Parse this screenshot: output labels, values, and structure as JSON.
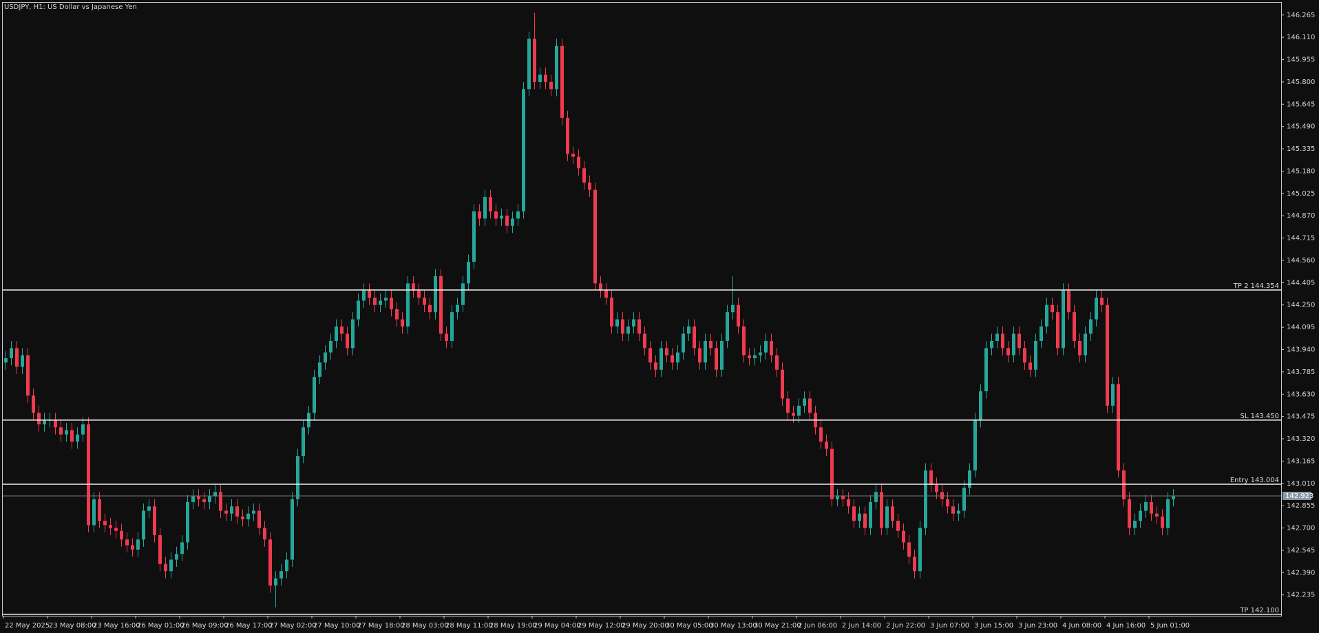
{
  "chart_data": {
    "type": "candlestick",
    "title": "USDJPY, H1:  US Dollar vs Japanese Yen",
    "bull_color": "#26a69a",
    "bear_color": "#ef3b4e",
    "categories": [
      "22 May 2025",
      null,
      null,
      null,
      null,
      null,
      null,
      null,
      "23 May 08:00",
      null,
      null,
      null,
      null,
      null,
      null,
      null,
      "23 May 16:00",
      null,
      null,
      null,
      null,
      null,
      null,
      null,
      "26 May 01:00",
      null,
      null,
      null,
      null,
      null,
      null,
      null,
      "26 May 09:00",
      null,
      null,
      null,
      null,
      null,
      null,
      null,
      "26 May 17:00",
      null,
      null,
      null,
      null,
      null,
      null,
      null,
      "27 May 02:00",
      null,
      null,
      null,
      null,
      null,
      null,
      null,
      "27 May 10:00",
      null,
      null,
      null,
      null,
      null,
      null,
      null,
      "27 May 18:00",
      null,
      null,
      null,
      null,
      null,
      null,
      null,
      "28 May 03:00",
      null,
      null,
      null,
      null,
      null,
      null,
      null,
      "28 May 11:00",
      null,
      null,
      null,
      null,
      null,
      null,
      null,
      "28 May 19:00",
      null,
      null,
      null,
      null,
      null,
      null,
      null,
      "29 May 04:00",
      null,
      null,
      null,
      null,
      null,
      null,
      null,
      "29 May 12:00",
      null,
      null,
      null,
      null,
      null,
      null,
      null,
      "29 May 20:00",
      null,
      null,
      null,
      null,
      null,
      null,
      null,
      "30 May 05:00",
      null,
      null,
      null,
      null,
      null,
      null,
      null,
      "30 May 13:00",
      null,
      null,
      null,
      null,
      null,
      null,
      null,
      "30 May 21:00",
      null,
      null,
      null,
      null,
      null,
      null,
      null,
      "2 Jun 06:00",
      null,
      null,
      null,
      null,
      null,
      null,
      null,
      "2 Jun 14:00",
      null,
      null,
      null,
      null,
      null,
      null,
      null,
      "2 Jun 22:00",
      null,
      null,
      null,
      null,
      null,
      null,
      null,
      "3 Jun 07:00",
      null,
      null,
      null,
      null,
      null,
      null,
      null,
      "3 Jun 15:00",
      null,
      null,
      null,
      null,
      null,
      null,
      null,
      "3 Jun 23:00",
      null,
      null,
      null,
      null,
      null,
      null,
      null,
      "4 Jun 08:00",
      null,
      null,
      null,
      null,
      null,
      null,
      null,
      "4 Jun 16:00",
      null,
      null,
      null,
      null,
      null,
      null,
      null,
      "5 Jun 01:00",
      null,
      null,
      null,
      null
    ],
    "open": [
      143.85,
      143.88,
      143.95,
      143.82,
      143.9,
      143.62,
      143.5,
      143.42,
      143.45,
      143.45,
      143.4,
      143.35,
      143.38,
      143.3,
      143.35,
      143.42,
      142.72,
      142.9,
      142.75,
      142.72,
      142.7,
      142.68,
      142.62,
      142.58,
      142.55,
      142.62,
      142.82,
      142.85,
      142.65,
      142.45,
      142.4,
      142.48,
      142.52,
      142.6,
      142.88,
      142.92,
      142.9,
      142.88,
      142.92,
      142.95,
      142.82,
      142.8,
      142.85,
      142.78,
      142.76,
      142.8,
      142.82,
      142.7,
      142.62,
      142.3,
      142.35,
      142.4,
      142.48,
      142.9,
      143.2,
      143.4,
      143.5,
      143.75,
      143.85,
      143.92,
      144.0,
      144.1,
      144.05,
      143.95,
      144.15,
      144.28,
      144.35,
      144.3,
      144.25,
      144.28,
      144.3,
      144.22,
      144.15,
      144.1,
      144.4,
      144.35,
      144.3,
      144.25,
      144.2,
      144.45,
      144.05,
      144.0,
      144.2,
      144.25,
      144.4,
      144.55,
      144.9,
      144.85,
      145.0,
      144.9,
      144.85,
      144.87,
      144.8,
      144.85,
      144.9,
      145.75,
      146.1,
      145.8,
      145.85,
      145.8,
      145.75,
      146.05,
      145.55,
      145.3,
      145.28,
      145.2,
      145.1,
      145.05,
      144.4,
      144.35,
      144.3,
      144.1,
      144.15,
      144.05,
      144.1,
      144.15,
      144.05,
      143.95,
      143.85,
      143.8,
      143.95,
      143.9,
      143.85,
      143.92,
      144.05,
      144.1,
      143.95,
      143.85,
      144.0,
      143.95,
      143.8,
      144.0,
      144.2,
      144.25,
      144.1,
      143.9,
      143.88,
      143.9,
      143.92,
      144.0,
      143.9,
      143.8,
      143.6,
      143.5,
      143.48,
      143.55,
      143.6,
      143.5,
      143.4,
      143.3,
      143.25,
      142.9,
      142.92,
      142.9,
      142.85,
      142.75,
      142.8,
      142.7,
      142.88,
      142.95,
      142.7,
      142.85,
      142.75,
      142.68,
      142.6,
      142.5,
      142.4,
      142.7,
      143.1,
      143.0,
      142.95,
      142.9,
      142.85,
      142.8,
      142.82,
      142.98,
      143.1,
      143.45,
      143.65,
      143.95,
      144.0,
      144.05,
      143.95,
      143.9,
      144.05,
      143.95,
      143.85,
      143.8,
      144.0,
      144.1,
      144.25,
      144.2,
      143.95,
      144.35,
      144.2,
      144.0,
      143.9,
      144.05,
      144.15,
      144.3,
      144.25,
      143.55,
      143.7,
      143.1,
      142.9,
      142.7,
      142.75,
      142.82,
      142.88,
      142.8,
      142.78,
      142.7,
      142.9
    ],
    "high": [
      143.93,
      144.0,
      144.0,
      143.95,
      143.95,
      143.67,
      143.55,
      143.5,
      143.5,
      143.5,
      143.45,
      143.43,
      143.43,
      143.4,
      143.47,
      143.47,
      142.95,
      142.95,
      142.8,
      142.77,
      142.75,
      142.73,
      142.67,
      142.63,
      142.67,
      142.87,
      142.9,
      142.9,
      142.7,
      142.5,
      142.53,
      142.57,
      142.65,
      142.93,
      142.97,
      142.97,
      142.95,
      142.97,
      143.0,
      143.0,
      142.87,
      142.9,
      142.9,
      142.83,
      142.85,
      142.87,
      142.87,
      142.75,
      142.67,
      142.4,
      142.45,
      142.53,
      142.95,
      143.25,
      143.45,
      143.55,
      143.8,
      143.9,
      143.97,
      144.05,
      144.15,
      144.15,
      144.1,
      144.2,
      144.33,
      144.4,
      144.4,
      144.35,
      144.33,
      144.35,
      144.35,
      144.27,
      144.2,
      144.45,
      144.45,
      144.4,
      144.35,
      144.3,
      144.5,
      144.5,
      144.1,
      144.25,
      144.3,
      144.45,
      144.6,
      144.95,
      144.95,
      145.05,
      145.05,
      144.95,
      144.92,
      144.92,
      144.9,
      144.95,
      145.8,
      146.15,
      146.28,
      145.9,
      145.9,
      145.85,
      146.1,
      146.1,
      145.6,
      145.35,
      145.33,
      145.25,
      145.15,
      145.1,
      144.45,
      144.4,
      144.35,
      144.2,
      144.2,
      144.15,
      144.2,
      144.2,
      144.1,
      144.0,
      143.9,
      144.0,
      144.0,
      143.95,
      143.97,
      144.1,
      144.15,
      144.15,
      144.0,
      144.05,
      144.05,
      144.0,
      144.05,
      144.25,
      144.45,
      144.3,
      144.15,
      143.95,
      143.95,
      143.97,
      144.05,
      144.05,
      143.95,
      143.85,
      143.65,
      143.55,
      143.6,
      143.65,
      143.65,
      143.55,
      143.45,
      143.35,
      143.3,
      142.97,
      142.97,
      142.95,
      142.9,
      142.85,
      142.85,
      142.93,
      143.0,
      143.0,
      142.9,
      142.9,
      142.8,
      142.73,
      142.65,
      142.55,
      142.75,
      143.15,
      143.15,
      143.05,
      143.0,
      142.95,
      142.9,
      142.87,
      143.03,
      143.15,
      143.5,
      143.7,
      144.0,
      144.05,
      144.1,
      144.1,
      144.0,
      144.1,
      144.1,
      144.0,
      143.9,
      144.05,
      144.15,
      144.3,
      144.3,
      144.25,
      144.4,
      144.4,
      144.25,
      144.05,
      144.1,
      144.2,
      144.35,
      144.35,
      144.3,
      143.75,
      143.75,
      143.15,
      142.95,
      142.8,
      142.87,
      142.93,
      142.93,
      142.85,
      142.83,
      142.95,
      142.97
    ],
    "low": [
      143.8,
      143.83,
      143.77,
      143.77,
      143.57,
      143.45,
      143.37,
      143.37,
      143.4,
      143.35,
      143.3,
      143.3,
      143.25,
      143.25,
      143.3,
      142.67,
      142.67,
      142.7,
      142.67,
      142.65,
      142.63,
      142.57,
      142.53,
      142.5,
      142.5,
      142.57,
      142.77,
      142.6,
      142.4,
      142.35,
      142.35,
      142.43,
      142.47,
      142.55,
      142.83,
      142.85,
      142.83,
      142.83,
      142.87,
      142.77,
      142.75,
      142.75,
      142.73,
      142.71,
      142.71,
      142.75,
      142.65,
      142.57,
      142.25,
      142.15,
      142.3,
      142.35,
      142.43,
      142.85,
      143.15,
      143.35,
      143.45,
      143.7,
      143.8,
      143.87,
      143.95,
      144.0,
      143.9,
      143.9,
      144.1,
      144.23,
      144.25,
      144.2,
      144.2,
      144.23,
      144.17,
      144.1,
      144.05,
      144.05,
      144.3,
      144.25,
      144.2,
      144.15,
      144.15,
      144.0,
      143.95,
      143.95,
      144.15,
      144.2,
      144.35,
      144.5,
      144.8,
      144.8,
      144.85,
      144.8,
      144.8,
      144.75,
      144.75,
      144.8,
      144.85,
      145.7,
      145.75,
      145.75,
      145.75,
      145.7,
      145.7,
      145.5,
      145.25,
      145.23,
      145.15,
      145.05,
      145.0,
      144.35,
      144.3,
      144.25,
      144.05,
      144.05,
      144.0,
      144.0,
      144.05,
      144.0,
      143.9,
      143.8,
      143.75,
      143.75,
      143.85,
      143.8,
      143.8,
      143.87,
      144.0,
      143.9,
      143.8,
      143.8,
      143.9,
      143.75,
      143.75,
      143.95,
      144.15,
      144.05,
      143.85,
      143.83,
      143.83,
      143.85,
      143.87,
      143.85,
      143.75,
      143.55,
      143.45,
      143.43,
      143.43,
      143.5,
      143.45,
      143.35,
      143.25,
      143.2,
      142.85,
      142.85,
      142.85,
      142.8,
      142.7,
      142.7,
      142.65,
      142.65,
      142.83,
      142.65,
      142.65,
      142.7,
      142.63,
      142.55,
      142.45,
      142.35,
      142.35,
      142.65,
      142.95,
      142.9,
      142.85,
      142.8,
      142.75,
      142.75,
      142.77,
      142.93,
      143.05,
      143.4,
      143.6,
      143.9,
      143.95,
      143.9,
      143.85,
      143.85,
      143.9,
      143.8,
      143.75,
      143.75,
      143.95,
      144.05,
      144.15,
      143.9,
      143.9,
      144.15,
      143.95,
      143.85,
      143.85,
      144.0,
      144.1,
      144.2,
      143.5,
      143.5,
      143.05,
      142.85,
      142.65,
      142.65,
      142.7,
      142.77,
      142.75,
      142.73,
      142.65,
      142.65,
      142.85
    ],
    "close": [
      143.88,
      143.95,
      143.82,
      143.9,
      143.62,
      143.5,
      143.42,
      143.45,
      143.45,
      143.4,
      143.35,
      143.38,
      143.3,
      143.35,
      143.42,
      142.72,
      142.9,
      142.75,
      142.72,
      142.7,
      142.68,
      142.62,
      142.58,
      142.55,
      142.62,
      142.82,
      142.85,
      142.65,
      142.45,
      142.4,
      142.48,
      142.52,
      142.6,
      142.88,
      142.92,
      142.9,
      142.88,
      142.92,
      142.95,
      142.82,
      142.8,
      142.85,
      142.78,
      142.76,
      142.8,
      142.82,
      142.7,
      142.62,
      142.3,
      142.35,
      142.4,
      142.48,
      142.9,
      143.2,
      143.4,
      143.5,
      143.75,
      143.85,
      143.92,
      144.0,
      144.1,
      144.05,
      143.95,
      144.15,
      144.28,
      144.35,
      144.3,
      144.25,
      144.28,
      144.3,
      144.22,
      144.15,
      144.1,
      144.4,
      144.35,
      144.3,
      144.25,
      144.2,
      144.45,
      144.05,
      144.0,
      144.2,
      144.25,
      144.4,
      144.55,
      144.9,
      144.85,
      145.0,
      144.9,
      144.85,
      144.87,
      144.8,
      144.85,
      144.9,
      145.75,
      146.1,
      145.8,
      145.85,
      145.8,
      145.75,
      146.05,
      145.55,
      145.3,
      145.28,
      145.2,
      145.1,
      145.05,
      144.4,
      144.35,
      144.3,
      144.1,
      144.15,
      144.05,
      144.1,
      144.15,
      144.05,
      143.95,
      143.85,
      143.8,
      143.95,
      143.9,
      143.85,
      143.92,
      144.05,
      144.1,
      143.95,
      143.85,
      144.0,
      143.95,
      143.8,
      144.0,
      144.2,
      144.25,
      144.1,
      143.9,
      143.88,
      143.9,
      143.92,
      144.0,
      143.9,
      143.8,
      143.6,
      143.5,
      143.48,
      143.55,
      143.6,
      143.5,
      143.4,
      143.3,
      143.25,
      142.9,
      142.92,
      142.9,
      142.85,
      142.75,
      142.8,
      142.7,
      142.88,
      142.95,
      142.7,
      142.85,
      142.75,
      142.68,
      142.6,
      142.5,
      142.4,
      142.7,
      143.1,
      143.0,
      142.95,
      142.9,
      142.85,
      142.8,
      142.82,
      142.98,
      143.1,
      143.45,
      143.65,
      143.95,
      144.0,
      144.05,
      143.95,
      143.9,
      144.05,
      143.95,
      143.85,
      143.8,
      144.0,
      144.1,
      144.25,
      144.2,
      143.95,
      144.35,
      144.2,
      144.0,
      143.9,
      144.05,
      144.15,
      144.3,
      144.25,
      143.55,
      143.7,
      143.1,
      142.9,
      142.7,
      142.75,
      142.82,
      142.88,
      142.8,
      142.78,
      142.7,
      142.9,
      142.92
    ],
    "ylim": [
      142.09,
      146.35
    ],
    "yticks": [
      146.265,
      {
        "value": 146.11,
        "label": "146.110"
      },
      145.955,
      {
        "value": 145.8,
        "label": "145.800"
      },
      145.645,
      {
        "value": 145.49,
        "label": "145.490"
      },
      145.335,
      {
        "value": 145.18,
        "label": "145.180"
      },
      145.025,
      {
        "value": 144.87,
        "label": "144.870"
      },
      144.715,
      {
        "value": 144.56,
        "label": "144.560"
      },
      144.405,
      {
        "value": 144.25,
        "label": "144.250"
      },
      144.095,
      {
        "value": 143.94,
        "label": "143.940"
      },
      143.785,
      {
        "value": 143.63,
        "label": "143.630"
      },
      143.475,
      {
        "value": 143.32,
        "label": "143.320"
      },
      143.165,
      {
        "value": 143.01,
        "label": "143.010"
      },
      142.855,
      {
        "value": 142.7,
        "label": "142.700"
      },
      142.545,
      {
        "value": 142.39,
        "label": "142.390"
      },
      142.235
    ],
    "levels": [
      {
        "label": "TP 2 144.354",
        "value": 144.354
      },
      {
        "label": "SL 143.450",
        "value": 143.45
      },
      {
        "label": "Entry 143.004",
        "value": 143.004
      },
      {
        "label": "TP 142.100",
        "value": 142.1
      }
    ],
    "bid": 142.923
  }
}
